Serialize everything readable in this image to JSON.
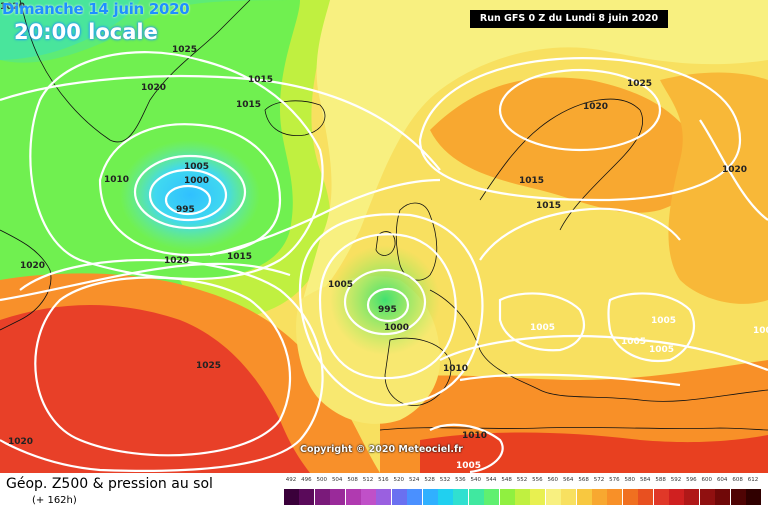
{
  "header": {
    "date_label": "Dimanche 14 juin 2020",
    "time_label": "20:00 locale",
    "run_label": "Run GFS 0 Z du Lundi 8 juin 2020"
  },
  "copyright": "Copyright © 2020 Meteociel.fr",
  "footer": {
    "title": "Géop. Z500 & pression au sol",
    "lead": "(+ 162h)"
  },
  "color_scale": {
    "labels": [
      "492",
      "496",
      "500",
      "504",
      "508",
      "512",
      "516",
      "520",
      "524",
      "528",
      "532",
      "536",
      "540",
      "544",
      "548",
      "552",
      "556",
      "560",
      "564",
      "568",
      "572",
      "576",
      "580",
      "584",
      "588",
      "592",
      "596",
      "600",
      "604",
      "608",
      "612"
    ],
    "colors": [
      "#3a003a",
      "#5a0a5a",
      "#7a1a7a",
      "#9a2a9a",
      "#b03ab0",
      "#c050c8",
      "#9a60e0",
      "#6a70f0",
      "#4a90ff",
      "#30b0ff",
      "#20d0f0",
      "#30e0d0",
      "#40e8a0",
      "#60f070",
      "#90f040",
      "#c0f040",
      "#e8f050",
      "#f8f080",
      "#f8e060",
      "#f8c840",
      "#f8a830",
      "#f89028",
      "#f07020",
      "#e85020",
      "#e03828",
      "#d02020",
      "#b01818",
      "#901010",
      "#700808",
      "#500404",
      "#300000"
    ]
  },
  "isobars": [
    {
      "label": "1025"
    },
    {
      "label": "1020"
    },
    {
      "label": "1015"
    },
    {
      "label": "1015"
    },
    {
      "label": "1005"
    },
    {
      "label": "1000"
    },
    {
      "label": "995"
    },
    {
      "label": "1010"
    },
    {
      "label": "1020"
    },
    {
      "label": "1015"
    },
    {
      "label": "1020"
    },
    {
      "label": "1005"
    },
    {
      "label": "995"
    },
    {
      "label": "1000"
    },
    {
      "label": "1025"
    },
    {
      "label": "1020"
    },
    {
      "label": "1025"
    },
    {
      "label": "1020"
    },
    {
      "label": "1015"
    },
    {
      "label": "1015"
    },
    {
      "label": "1020"
    },
    {
      "label": "1005"
    },
    {
      "label": "1005"
    },
    {
      "label": "1005"
    },
    {
      "label": "1005"
    },
    {
      "label": "1010"
    },
    {
      "label": "1010"
    },
    {
      "label": "1005"
    },
    {
      "label": "1005"
    },
    {
      "label": "1020"
    }
  ]
}
